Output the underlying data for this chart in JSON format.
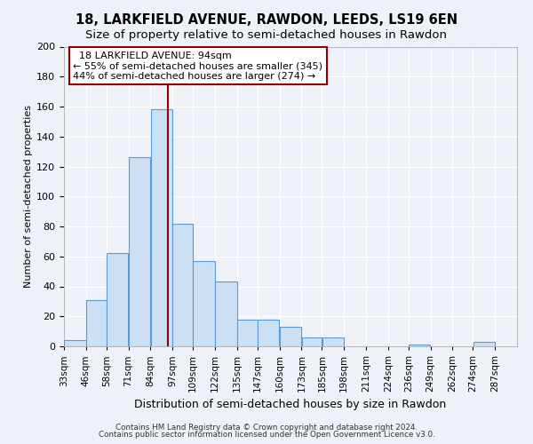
{
  "title": "18, LARKFIELD AVENUE, RAWDON, LEEDS, LS19 6EN",
  "subtitle": "Size of property relative to semi-detached houses in Rawdon",
  "xlabel": "Distribution of semi-detached houses by size in Rawdon",
  "ylabel": "Number of semi-detached properties",
  "bin_labels": [
    "33sqm",
    "46sqm",
    "58sqm",
    "71sqm",
    "84sqm",
    "97sqm",
    "109sqm",
    "122sqm",
    "135sqm",
    "147sqm",
    "160sqm",
    "173sqm",
    "185sqm",
    "198sqm",
    "211sqm",
    "224sqm",
    "236sqm",
    "249sqm",
    "262sqm",
    "274sqm",
    "287sqm"
  ],
  "bin_edges": [
    33,
    46,
    58,
    71,
    84,
    97,
    109,
    122,
    135,
    147,
    160,
    173,
    185,
    198,
    211,
    224,
    236,
    249,
    262,
    274,
    287,
    300
  ],
  "bar_values": [
    4,
    31,
    62,
    126,
    158,
    82,
    57,
    43,
    18,
    18,
    13,
    6,
    6,
    0,
    0,
    0,
    1,
    0,
    0,
    3,
    0
  ],
  "bar_color": "#cce0f5",
  "bar_edge_color": "#5b9bd5",
  "property_line_x": 94,
  "property_line_color": "#8b0000",
  "annotation_title": "18 LARKFIELD AVENUE: 94sqm",
  "annotation_line1": "← 55% of semi-detached houses are smaller (345)",
  "annotation_line2": "44% of semi-detached houses are larger (274) →",
  "annotation_box_color": "#ffffff",
  "annotation_box_edge": "#8b0000",
  "ylim": [
    0,
    200
  ],
  "yticks": [
    0,
    20,
    40,
    60,
    80,
    100,
    120,
    140,
    160,
    180,
    200
  ],
  "footer1": "Contains HM Land Registry data © Crown copyright and database right 2024.",
  "footer2": "Contains public sector information licensed under the Open Government Licence v3.0.",
  "background_color": "#eef2f8",
  "plot_background": "#eef2f8",
  "grid_color": "#ffffff",
  "title_fontsize": 10.5,
  "subtitle_fontsize": 9.5
}
